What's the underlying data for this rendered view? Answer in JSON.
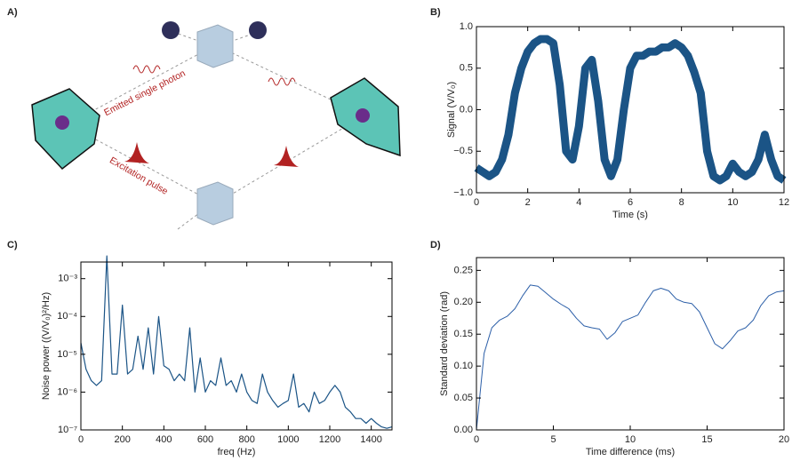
{
  "diagram": {
    "label": "A)",
    "emitted": "Emitted single photon",
    "excitation": "Excitation pulse"
  },
  "chart_data": [
    {
      "type": "line",
      "panel_label": "B)",
      "xlabel": "Time (s)",
      "ylabel": "Signal (V/V₀)",
      "color": "#1b5486",
      "x": [
        0,
        0.25,
        0.5,
        0.75,
        1,
        1.25,
        1.5,
        1.75,
        2,
        2.25,
        2.5,
        2.75,
        3,
        3.25,
        3.5,
        3.75,
        4,
        4.25,
        4.5,
        4.75,
        5,
        5.25,
        5.5,
        5.75,
        6,
        6.25,
        6.5,
        6.75,
        7,
        7.25,
        7.5,
        7.75,
        8,
        8.25,
        8.5,
        8.75,
        9,
        9.25,
        9.5,
        9.75,
        10,
        10.25,
        10.5,
        10.75,
        11,
        11.25,
        11.5,
        11.75,
        12
      ],
      "values": [
        -0.7,
        -0.75,
        -0.8,
        -0.75,
        -0.6,
        -0.3,
        0.2,
        0.5,
        0.7,
        0.8,
        0.85,
        0.85,
        0.8,
        0.3,
        -0.5,
        -0.6,
        -0.2,
        0.5,
        0.6,
        0.1,
        -0.6,
        -0.8,
        -0.6,
        0.0,
        0.5,
        0.65,
        0.65,
        0.7,
        0.7,
        0.75,
        0.75,
        0.8,
        0.75,
        0.65,
        0.45,
        0.2,
        -0.5,
        -0.8,
        -0.85,
        -0.8,
        -0.65,
        -0.75,
        -0.8,
        -0.75,
        -0.6,
        -0.3,
        -0.6,
        -0.8,
        -0.85
      ],
      "xlim": [
        0,
        12
      ],
      "ylim": [
        -1,
        1
      ],
      "xticks": [
        0,
        2,
        4,
        6,
        8,
        10,
        12
      ],
      "yticks": [
        {
          "value": -1,
          "label": "−1.0"
        },
        {
          "value": -0.5,
          "label": "−0.5"
        },
        {
          "value": 0,
          "label": "0.0"
        },
        {
          "value": 0.5,
          "label": "0.5"
        },
        {
          "value": 1,
          "label": "1.0"
        }
      ]
    },
    {
      "type": "line",
      "panel_label": "C)",
      "xlabel": "freq (Hz)",
      "ylabel": "Noise power ((V/V₀)²/Hz)",
      "color": "#1b5486",
      "log_y": true,
      "x": [
        0,
        25,
        50,
        75,
        100,
        125,
        150,
        175,
        200,
        225,
        250,
        275,
        300,
        325,
        350,
        375,
        400,
        425,
        450,
        475,
        500,
        525,
        550,
        575,
        600,
        625,
        650,
        675,
        700,
        725,
        750,
        775,
        800,
        825,
        850,
        875,
        900,
        925,
        950,
        975,
        1000,
        1025,
        1050,
        1075,
        1100,
        1125,
        1150,
        1175,
        1200,
        1225,
        1250,
        1275,
        1300,
        1325,
        1350,
        1375,
        1400,
        1425,
        1450,
        1475,
        1500
      ],
      "values": [
        2e-05,
        4e-06,
        2e-06,
        1.5e-06,
        2e-06,
        0.004,
        3e-06,
        3e-06,
        0.0002,
        3e-06,
        4e-06,
        3e-05,
        4e-06,
        5e-05,
        3e-06,
        0.0001,
        5e-06,
        4e-06,
        2e-06,
        3e-06,
        2e-06,
        5e-05,
        1e-06,
        8e-06,
        1e-06,
        2e-06,
        1.5e-06,
        8e-06,
        1.5e-06,
        2e-06,
        1e-06,
        3e-06,
        1e-06,
        6e-07,
        5e-07,
        3e-06,
        1e-06,
        6e-07,
        4e-07,
        5e-07,
        6e-07,
        3e-06,
        4e-07,
        5e-07,
        3e-07,
        1e-06,
        5e-07,
        6e-07,
        1e-06,
        1.5e-06,
        1e-06,
        4e-07,
        3e-07,
        2e-07,
        2e-07,
        1.5e-07,
        2e-07,
        1.5e-07,
        1.2e-07,
        1.1e-07,
        1.2e-07
      ],
      "xlim": [
        0,
        1500
      ],
      "ylim": [
        1e-07,
        0.00275
      ],
      "xticks": [
        0,
        200,
        400,
        600,
        800,
        1000,
        1200,
        1400
      ],
      "yticks": [
        {
          "value": 1e-07,
          "label": "10⁻⁷"
        },
        {
          "value": 1e-06,
          "label": "10⁻⁶"
        },
        {
          "value": 1e-05,
          "label": "10⁻⁵"
        },
        {
          "value": 0.0001,
          "label": "10⁻⁴"
        },
        {
          "value": 0.001,
          "label": "10⁻³"
        }
      ]
    },
    {
      "type": "line",
      "panel_label": "D)",
      "xlabel": "Time difference (ms)",
      "ylabel": "Standard deviation (rad)",
      "color": "#2c5fa8",
      "x": [
        0,
        0.5,
        1,
        1.5,
        2,
        2.5,
        3,
        3.5,
        4,
        4.5,
        5,
        5.5,
        6,
        6.5,
        7,
        7.5,
        8,
        8.5,
        9,
        9.5,
        10,
        10.5,
        11,
        11.5,
        12,
        12.5,
        13,
        13.5,
        14,
        14.5,
        15,
        15.5,
        16,
        16.5,
        17,
        17.5,
        18,
        18.5,
        19,
        19.5,
        20
      ],
      "values": [
        0,
        0.12,
        0.16,
        0.172,
        0.178,
        0.19,
        0.21,
        0.227,
        0.225,
        0.215,
        0.205,
        0.197,
        0.19,
        0.175,
        0.163,
        0.16,
        0.158,
        0.142,
        0.152,
        0.17,
        0.175,
        0.18,
        0.2,
        0.218,
        0.222,
        0.218,
        0.205,
        0.2,
        0.198,
        0.185,
        0.16,
        0.135,
        0.127,
        0.14,
        0.155,
        0.16,
        0.172,
        0.195,
        0.21,
        0.216,
        0.218
      ],
      "xlim": [
        0,
        20
      ],
      "ylim": [
        0,
        0.27
      ],
      "xticks": [
        0,
        5,
        10,
        15,
        20
      ],
      "yticks": [
        {
          "value": 0,
          "label": "0.00"
        },
        {
          "value": 0.05,
          "label": "0.05"
        },
        {
          "value": 0.1,
          "label": "0.10"
        },
        {
          "value": 0.15,
          "label": "0.15"
        },
        {
          "value": 0.2,
          "label": "0.20"
        },
        {
          "value": 0.25,
          "label": "0.25"
        }
      ]
    }
  ]
}
